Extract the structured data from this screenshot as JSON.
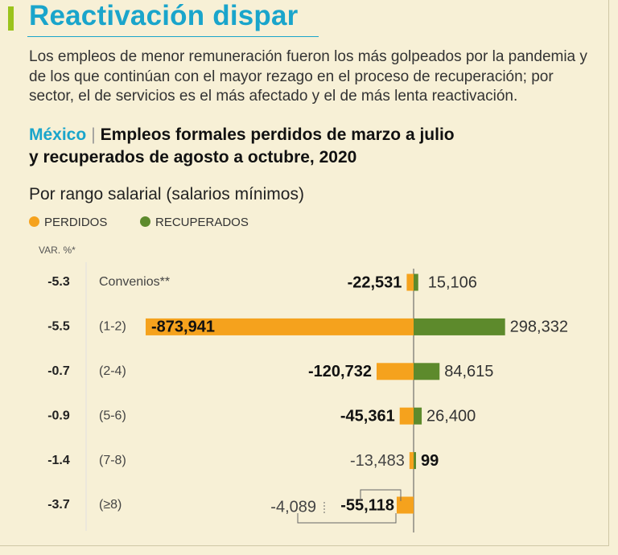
{
  "title": "Reactivación dispar",
  "subtitle": "Los empleos de menor remuneración fueron los más golpeados por la pandemia y de los que continúan con el mayor rezago en el proceso de recuperación; por sector, el de servicios es el más afectado y el de más lenta reactivación.",
  "chart_heading": {
    "country": "México",
    "line1": "Empleos formales perdidos de marzo a julio",
    "line2": "y recuperados de agosto a octubre, 2020"
  },
  "range_label": "Por rango salarial (salarios mínimos)",
  "legend": [
    {
      "label": "PERDIDOS",
      "color": "#f5a21d"
    },
    {
      "label": "RECUPERADOS",
      "color": "#5d8a2c"
    }
  ],
  "var_header": "VAR. %*",
  "colors": {
    "lost": "#f5a21d",
    "recovered": "#5d8a2c",
    "axis": "#555555"
  },
  "chart_data": {
    "type": "bar",
    "orientation": "horizontal-diverging",
    "title": "Empleos formales perdidos de marzo a julio y recuperados de agosto a octubre, 2020",
    "categories": [
      "Convenios**",
      "(1-2)",
      "(2-4)",
      "(5-6)",
      "(7-8)",
      "(≥8)"
    ],
    "var_pct": [
      "-5.3",
      "-5.5",
      "-0.7",
      "-0.9",
      "-1.4",
      "-3.7"
    ],
    "series": [
      {
        "name": "PERDIDOS",
        "values": [
          -22531,
          -873941,
          -120732,
          -45361,
          -13483,
          -55118
        ],
        "labels": [
          "-22,531",
          "-873,941",
          "-120,732",
          "-45,361",
          "-13,483",
          "-55,118"
        ],
        "label_bold": [
          true,
          true,
          true,
          true,
          false,
          true
        ]
      },
      {
        "name": "RECUPERADOS",
        "values": [
          15106,
          298332,
          84615,
          26400,
          99,
          -4089
        ],
        "labels": [
          "15,106",
          "298,332",
          "84,615",
          "26,400",
          "99",
          "-4,089"
        ],
        "label_bold": [
          false,
          false,
          false,
          false,
          true,
          false
        ]
      }
    ]
  }
}
